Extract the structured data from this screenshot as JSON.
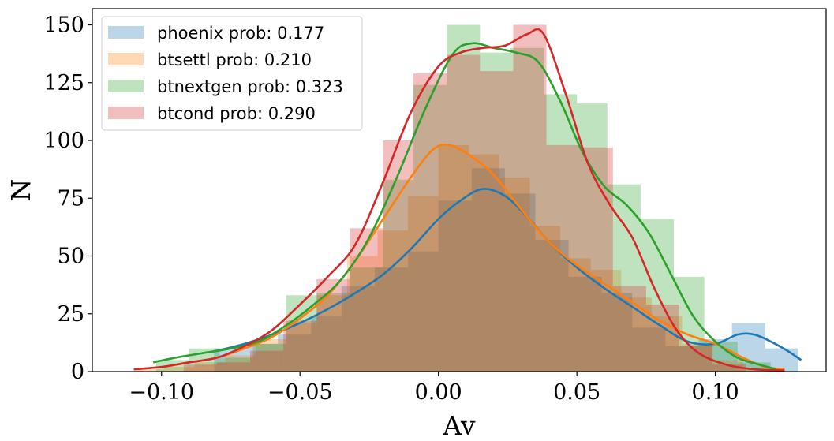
{
  "chart_data": {
    "type": "histogram",
    "xlabel": "Av",
    "ylabel": "N",
    "xlim": [
      -0.125,
      0.14
    ],
    "ylim": [
      0,
      157
    ],
    "xticks": [
      -0.1,
      -0.05,
      0.0,
      0.05,
      0.1
    ],
    "xtick_labels": [
      "−0.10",
      "−0.05",
      "0.00",
      "0.05",
      "0.10"
    ],
    "yticks": [
      0,
      25,
      50,
      75,
      100,
      125,
      150
    ],
    "ytick_labels": [
      "0",
      "25",
      "50",
      "75",
      "100",
      "125",
      "150"
    ],
    "grid": false,
    "legend_position": "top-left",
    "series": [
      {
        "name": "phoenix prob: 0.177",
        "color": "#1f77b4",
        "bins": [
          [
            -0.081,
            -0.07,
            10
          ],
          [
            -0.07,
            -0.058,
            12
          ],
          [
            -0.058,
            -0.046,
            16
          ],
          [
            -0.046,
            -0.035,
            24
          ],
          [
            -0.035,
            -0.023,
            37
          ],
          [
            -0.023,
            -0.011,
            45
          ],
          [
            -0.011,
            0.0,
            52
          ],
          [
            0.0,
            0.012,
            74
          ],
          [
            0.012,
            0.024,
            88
          ],
          [
            0.024,
            0.035,
            77
          ],
          [
            0.035,
            0.047,
            57
          ],
          [
            0.047,
            0.059,
            41
          ],
          [
            0.059,
            0.07,
            34
          ],
          [
            0.07,
            0.082,
            19
          ],
          [
            0.082,
            0.094,
            11
          ],
          [
            0.094,
            0.106,
            14
          ],
          [
            0.106,
            0.118,
            21
          ],
          [
            0.118,
            0.13,
            10
          ]
        ],
        "kde": [
          [
            -0.08,
            9
          ],
          [
            -0.07,
            12
          ],
          [
            -0.06,
            16
          ],
          [
            -0.05,
            21
          ],
          [
            -0.04,
            27
          ],
          [
            -0.03,
            34
          ],
          [
            -0.02,
            42
          ],
          [
            -0.01,
            53
          ],
          [
            0.0,
            66
          ],
          [
            0.008,
            74
          ],
          [
            0.016,
            79
          ],
          [
            0.024,
            76
          ],
          [
            0.032,
            67
          ],
          [
            0.04,
            56
          ],
          [
            0.05,
            45
          ],
          [
            0.06,
            36
          ],
          [
            0.07,
            28
          ],
          [
            0.08,
            20
          ],
          [
            0.09,
            13
          ],
          [
            0.1,
            12
          ],
          [
            0.108,
            16
          ],
          [
            0.114,
            16
          ],
          [
            0.12,
            13
          ],
          [
            0.126,
            9
          ],
          [
            0.131,
            5
          ]
        ]
      },
      {
        "name": "btsettl prob: 0.210",
        "color": "#ff7f0e",
        "bins": [
          [
            -0.11,
            -0.099,
            1
          ],
          [
            -0.099,
            -0.088,
            2
          ],
          [
            -0.088,
            -0.077,
            4
          ],
          [
            -0.077,
            -0.066,
            7
          ],
          [
            -0.066,
            -0.055,
            14
          ],
          [
            -0.055,
            -0.044,
            21
          ],
          [
            -0.044,
            -0.033,
            33
          ],
          [
            -0.033,
            -0.022,
            50
          ],
          [
            -0.022,
            -0.011,
            61
          ],
          [
            -0.011,
            0.0,
            76
          ],
          [
            0.0,
            0.011,
            98
          ],
          [
            0.011,
            0.022,
            94
          ],
          [
            0.022,
            0.033,
            84
          ],
          [
            0.033,
            0.044,
            63
          ],
          [
            0.044,
            0.055,
            49
          ],
          [
            0.055,
            0.066,
            44
          ],
          [
            0.066,
            0.077,
            32
          ],
          [
            0.077,
            0.088,
            24
          ],
          [
            0.088,
            0.099,
            12
          ],
          [
            0.099,
            0.11,
            5
          ],
          [
            0.11,
            0.121,
            1
          ]
        ],
        "kde": [
          [
            -0.11,
            1
          ],
          [
            -0.1,
            2
          ],
          [
            -0.09,
            4
          ],
          [
            -0.08,
            6
          ],
          [
            -0.07,
            10
          ],
          [
            -0.06,
            15
          ],
          [
            -0.05,
            23
          ],
          [
            -0.04,
            33
          ],
          [
            -0.03,
            48
          ],
          [
            -0.02,
            66
          ],
          [
            -0.01,
            84
          ],
          [
            -0.002,
            96
          ],
          [
            0.004,
            98
          ],
          [
            0.012,
            93
          ],
          [
            0.02,
            85
          ],
          [
            0.03,
            70
          ],
          [
            0.04,
            56
          ],
          [
            0.05,
            46
          ],
          [
            0.06,
            38
          ],
          [
            0.07,
            30
          ],
          [
            0.08,
            22
          ],
          [
            0.09,
            16
          ],
          [
            0.1,
            12
          ],
          [
            0.11,
            6
          ],
          [
            0.118,
            2
          ],
          [
            0.125,
            1
          ]
        ]
      },
      {
        "name": "btnextgen prob: 0.323",
        "color": "#2ca02c",
        "bins": [
          [
            -0.102,
            -0.09,
            5
          ],
          [
            -0.09,
            -0.079,
            10
          ],
          [
            -0.079,
            -0.067,
            6
          ],
          [
            -0.067,
            -0.055,
            12
          ],
          [
            -0.055,
            -0.044,
            33
          ],
          [
            -0.044,
            -0.032,
            34
          ],
          [
            -0.032,
            -0.02,
            45
          ],
          [
            -0.02,
            -0.009,
            83
          ],
          [
            -0.009,
            0.003,
            124
          ],
          [
            0.003,
            0.015,
            150
          ],
          [
            0.015,
            0.026,
            138
          ],
          [
            0.026,
            0.038,
            140
          ],
          [
            0.038,
            0.05,
            120
          ],
          [
            0.05,
            0.061,
            116
          ],
          [
            0.061,
            0.073,
            81
          ],
          [
            0.073,
            0.085,
            66
          ],
          [
            0.085,
            0.096,
            41
          ],
          [
            0.096,
            0.108,
            13
          ],
          [
            0.108,
            0.12,
            4
          ]
        ],
        "kde": [
          [
            -0.103,
            4
          ],
          [
            -0.095,
            6
          ],
          [
            -0.085,
            8
          ],
          [
            -0.075,
            10
          ],
          [
            -0.065,
            13
          ],
          [
            -0.055,
            20
          ],
          [
            -0.045,
            29
          ],
          [
            -0.035,
            40
          ],
          [
            -0.025,
            58
          ],
          [
            -0.015,
            84
          ],
          [
            -0.005,
            113
          ],
          [
            0.005,
            137
          ],
          [
            0.012,
            142
          ],
          [
            0.02,
            140
          ],
          [
            0.028,
            138
          ],
          [
            0.036,
            134
          ],
          [
            0.044,
            117
          ],
          [
            0.052,
            95
          ],
          [
            0.06,
            80
          ],
          [
            0.068,
            72
          ],
          [
            0.076,
            60
          ],
          [
            0.084,
            42
          ],
          [
            0.092,
            24
          ],
          [
            0.1,
            13
          ],
          [
            0.108,
            6
          ],
          [
            0.116,
            3
          ],
          [
            0.122,
            1
          ]
        ]
      },
      {
        "name": "btcond prob: 0.290",
        "color": "#d62728",
        "bins": [
          [
            -0.092,
            -0.08,
            3
          ],
          [
            -0.08,
            -0.068,
            4
          ],
          [
            -0.068,
            -0.056,
            9
          ],
          [
            -0.056,
            -0.044,
            22
          ],
          [
            -0.044,
            -0.032,
            40
          ],
          [
            -0.032,
            -0.02,
            62
          ],
          [
            -0.02,
            -0.009,
            100
          ],
          [
            -0.009,
            0.003,
            129
          ],
          [
            0.003,
            0.015,
            137
          ],
          [
            0.015,
            0.027,
            130
          ],
          [
            0.027,
            0.039,
            150
          ],
          [
            0.039,
            0.051,
            98
          ],
          [
            0.051,
            0.063,
            97
          ],
          [
            0.063,
            0.075,
            37
          ],
          [
            0.075,
            0.087,
            29
          ],
          [
            0.087,
            0.099,
            11
          ],
          [
            0.099,
            0.111,
            3
          ]
        ],
        "kde": [
          [
            -0.11,
            1
          ],
          [
            -0.1,
            2
          ],
          [
            -0.09,
            4
          ],
          [
            -0.08,
            6
          ],
          [
            -0.07,
            11
          ],
          [
            -0.06,
            18
          ],
          [
            -0.05,
            29
          ],
          [
            -0.04,
            41
          ],
          [
            -0.03,
            55
          ],
          [
            -0.02,
            82
          ],
          [
            -0.01,
            112
          ],
          [
            0.0,
            132
          ],
          [
            0.008,
            138
          ],
          [
            0.016,
            140
          ],
          [
            0.024,
            141
          ],
          [
            0.032,
            146
          ],
          [
            0.038,
            146
          ],
          [
            0.046,
            120
          ],
          [
            0.054,
            90
          ],
          [
            0.062,
            72
          ],
          [
            0.07,
            58
          ],
          [
            0.078,
            36
          ],
          [
            0.086,
            18
          ],
          [
            0.094,
            8
          ],
          [
            0.104,
            3
          ],
          [
            0.114,
            1
          ],
          [
            0.125,
            0.5
          ]
        ]
      }
    ]
  }
}
